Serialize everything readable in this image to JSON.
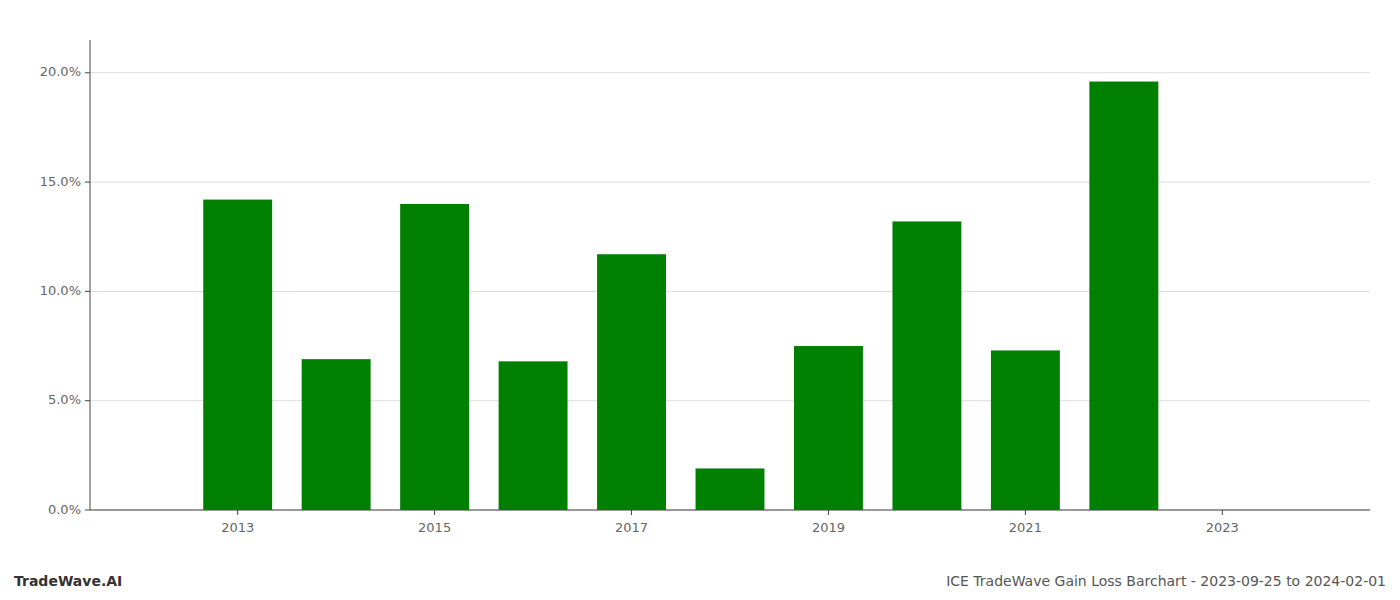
{
  "chart_data": {
    "type": "bar",
    "title": "ICE TradeWave Gain Loss Barchart - 2023-09-25 to 2024-02-01",
    "annotations": [
      "TradeWave.AI"
    ],
    "x": [
      2013,
      2014,
      2015,
      2016,
      2017,
      2018,
      2019,
      2020,
      2021,
      2022
    ],
    "values": [
      0.142,
      0.069,
      0.14,
      0.068,
      0.117,
      0.019,
      0.075,
      0.132,
      0.073,
      0.196
    ],
    "color": "#008000",
    "xlim": [
      2011.5,
      2024.5
    ],
    "xticks": [
      2013,
      2015,
      2017,
      2019,
      2021,
      2023
    ],
    "ylim": [
      0.0,
      0.215
    ],
    "yticks": [
      {
        "value": 0.0,
        "label": "0.0%"
      },
      {
        "value": 0.05,
        "label": "5.0%"
      },
      {
        "value": 0.1,
        "label": "10.0%"
      },
      {
        "value": 0.15,
        "label": "15.0%"
      },
      {
        "value": 0.2,
        "label": "20.0%"
      }
    ],
    "grid": true
  }
}
